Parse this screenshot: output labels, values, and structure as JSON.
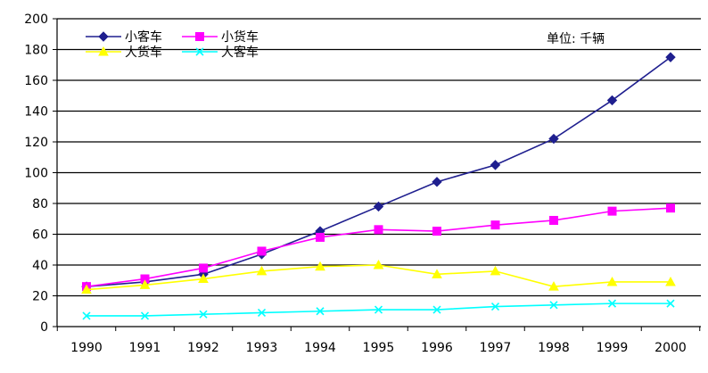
{
  "chart_data": {
    "type": "line",
    "title": "",
    "xlabel": "",
    "ylabel": "",
    "unit_note": "单位: 千辆",
    "categories": [
      "1990",
      "1991",
      "1992",
      "1993",
      "1994",
      "1995",
      "1996",
      "1997",
      "1998",
      "1999",
      "2000"
    ],
    "ylim": [
      0,
      200
    ],
    "yticks": [
      "0",
      "20",
      "40",
      "60",
      "80",
      "100",
      "120",
      "140",
      "160",
      "180",
      "200"
    ],
    "grid": true,
    "legend_position": "top-left",
    "series": [
      {
        "name": "小客车",
        "color": "#1f1f8f",
        "marker": "diamond",
        "values": [
          26,
          29,
          34,
          47,
          62,
          78,
          94,
          105,
          122,
          147,
          175
        ]
      },
      {
        "name": "小货车",
        "color": "#ff00ff",
        "marker": "square",
        "values": [
          26,
          31,
          38,
          49,
          58,
          63,
          62,
          66,
          69,
          75,
          77
        ]
      },
      {
        "name": "大货车",
        "color": "#ffff00",
        "marker": "triangle",
        "values": [
          24,
          27,
          31,
          36,
          39,
          40,
          34,
          36,
          26,
          29,
          29
        ]
      },
      {
        "name": "大客车",
        "color": "#00ffff",
        "marker": "x",
        "values": [
          7,
          7,
          8,
          9,
          10,
          11,
          11,
          13,
          14,
          15,
          15
        ]
      }
    ]
  }
}
